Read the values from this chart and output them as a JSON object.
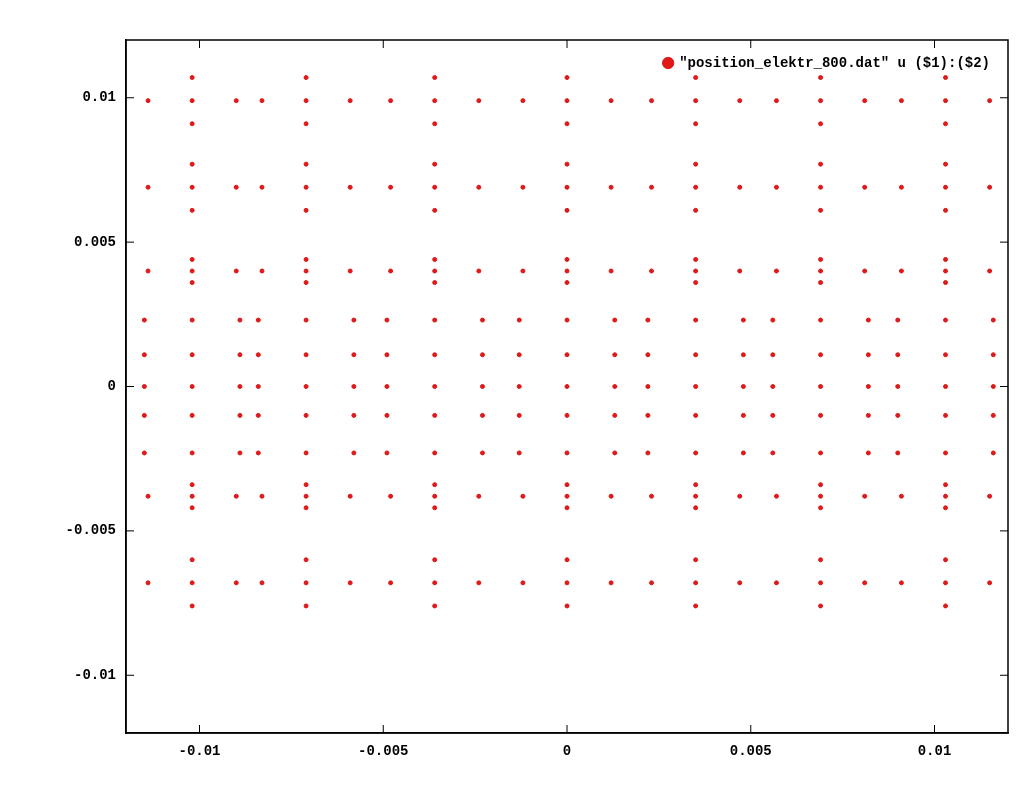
{
  "chart_data": {
    "type": "scatter",
    "xlim": [
      -0.012,
      0.012
    ],
    "xticks": [
      {
        "value": -0.01,
        "label": "-0.01"
      },
      {
        "value": -0.005,
        "label": "-0.005"
      },
      0,
      {
        "value": 0.005,
        "label": "0.005"
      },
      {
        "value": 0.01,
        "label": "0.01"
      }
    ],
    "ylim": [
      -0.012,
      0.012
    ],
    "yticks": [
      {
        "value": -0.01,
        "label": "-0.01"
      },
      {
        "value": -0.005,
        "label": "-0.005"
      },
      0,
      {
        "value": 0.005,
        "label": "0.005"
      },
      {
        "value": 0.01,
        "label": "0.01"
      }
    ],
    "grid": false,
    "legend": "top right",
    "marker": "circle",
    "series": [
      {
        "name": "\"position_elektr_800.dat\" u ($1):($2)",
        "color": "#e01818",
        "x": [
          -0.0102,
          -0.0114,
          -0.009,
          -0.0102,
          -0.0102,
          -0.0071,
          -0.0083,
          -0.0059,
          -0.0071,
          -0.0071,
          -0.0036,
          -0.0048,
          -0.0024,
          -0.0036,
          -0.0036,
          0,
          -0.0012,
          0.0012,
          0,
          0,
          0.0035,
          0.0023,
          0.0047,
          0.0035,
          0.0035,
          0.0069,
          0.0057,
          0.0081,
          0.0069,
          0.0069,
          0.0103,
          0.0091,
          0.0115,
          0.0103,
          0.0103,
          -0.0102,
          -0.0114,
          -0.009,
          -0.0102,
          -0.0102,
          -0.0071,
          -0.0083,
          -0.0059,
          -0.0071,
          -0.0071,
          -0.0036,
          -0.0048,
          -0.0024,
          -0.0036,
          -0.0036,
          0,
          -0.0012,
          0.0012,
          0,
          0,
          0.0035,
          0.0023,
          0.0047,
          0.0035,
          0.0035,
          0.0069,
          0.0057,
          0.0081,
          0.0069,
          0.0069,
          0.0103,
          0.0091,
          0.0115,
          0.0103,
          0.0103,
          -0.0102,
          -0.0114,
          -0.009,
          -0.0102,
          -0.0102,
          -0.0071,
          -0.0083,
          -0.0059,
          -0.0071,
          -0.0071,
          -0.0036,
          -0.0048,
          -0.0024,
          -0.0036,
          -0.0036,
          0,
          -0.0012,
          0.0012,
          0,
          0,
          0.0035,
          0.0023,
          0.0047,
          0.0035,
          0.0035,
          0.0069,
          0.0057,
          0.0081,
          0.0069,
          0.0069,
          0.0103,
          0.0091,
          0.0115,
          0.0103,
          0.0103,
          -0.0102,
          -0.0115,
          -0.0089,
          -0.0071,
          -0.0084,
          -0.0058,
          -0.0036,
          -0.0049,
          -0.0023,
          0,
          -0.0013,
          0.0013,
          0.0035,
          0.0022,
          0.0048,
          0.0069,
          0.0056,
          0.0082,
          0.0103,
          0.009,
          0.0116,
          -0.0102,
          -0.0115,
          -0.0089,
          -0.0071,
          -0.0084,
          -0.0058,
          -0.0036,
          -0.0049,
          -0.0023,
          0,
          -0.0013,
          0.0013,
          0.0035,
          0.0022,
          0.0048,
          0.0069,
          0.0056,
          0.0082,
          0.0103,
          0.009,
          0.0116,
          -0.0102,
          -0.0115,
          -0.0089,
          -0.0071,
          -0.0084,
          -0.0058,
          -0.0036,
          -0.0049,
          -0.0023,
          0,
          -0.0013,
          0.0013,
          0.0035,
          0.0022,
          0.0048,
          0.0069,
          0.0056,
          0.0082,
          0.0103,
          0.009,
          0.0116,
          -0.0102,
          -0.0115,
          -0.0089,
          -0.0071,
          -0.0084,
          -0.0058,
          -0.0036,
          -0.0049,
          -0.0023,
          0,
          -0.0013,
          0.0013,
          0.0035,
          0.0022,
          0.0048,
          0.0069,
          0.0056,
          0.0082,
          0.0103,
          0.009,
          0.0116,
          -0.0102,
          -0.0115,
          -0.0089,
          -0.0071,
          -0.0084,
          -0.0058,
          -0.0036,
          -0.0049,
          -0.0023,
          0,
          -0.0013,
          0.0013,
          0.0035,
          0.0022,
          0.0048,
          0.0069,
          0.0056,
          0.0082,
          0.0103,
          0.009,
          0.0116,
          -0.0102,
          -0.0114,
          -0.009,
          -0.0102,
          -0.0102,
          -0.0071,
          -0.0083,
          -0.0059,
          -0.0071,
          -0.0071,
          -0.0036,
          -0.0048,
          -0.0024,
          -0.0036,
          -0.0036,
          0,
          -0.0012,
          0.0012,
          0,
          0,
          0.0035,
          0.0023,
          0.0047,
          0.0035,
          0.0035,
          0.0069,
          0.0057,
          0.0081,
          0.0069,
          0.0069,
          0.0103,
          0.0091,
          0.0115,
          0.0103,
          0.0103,
          -0.0102,
          -0.0114,
          -0.009,
          -0.0102,
          -0.0102,
          -0.0071,
          -0.0083,
          -0.0059,
          -0.0071,
          -0.0071,
          -0.0036,
          -0.0048,
          -0.0024,
          -0.0036,
          -0.0036,
          0,
          -0.0012,
          0.0012,
          0,
          0,
          0.0035,
          0.0023,
          0.0047,
          0.0035,
          0.0035,
          0.0069,
          0.0057,
          0.0081,
          0.0069,
          0.0069,
          0.0103,
          0.0091,
          0.0115,
          0.0103,
          0.0103
        ],
        "values": [
          0.0099,
          0.0099,
          0.0099,
          0.0107,
          0.0091,
          0.0099,
          0.0099,
          0.0099,
          0.0107,
          0.0091,
          0.0099,
          0.0099,
          0.0099,
          0.0107,
          0.0091,
          0.0099,
          0.0099,
          0.0099,
          0.0107,
          0.0091,
          0.0099,
          0.0099,
          0.0099,
          0.0107,
          0.0091,
          0.0099,
          0.0099,
          0.0099,
          0.0107,
          0.0091,
          0.0099,
          0.0099,
          0.0099,
          0.0107,
          0.0091,
          0.0069,
          0.0069,
          0.0069,
          0.0077,
          0.0061,
          0.0069,
          0.0069,
          0.0069,
          0.0077,
          0.0061,
          0.0069,
          0.0069,
          0.0069,
          0.0077,
          0.0061,
          0.0069,
          0.0069,
          0.0069,
          0.0077,
          0.0061,
          0.0069,
          0.0069,
          0.0069,
          0.0077,
          0.0061,
          0.0069,
          0.0069,
          0.0069,
          0.0077,
          0.0061,
          0.0069,
          0.0069,
          0.0069,
          0.0077,
          0.0061,
          0.004,
          0.004,
          0.004,
          0.0044,
          0.0036,
          0.004,
          0.004,
          0.004,
          0.0044,
          0.0036,
          0.004,
          0.004,
          0.004,
          0.0044,
          0.0036,
          0.004,
          0.004,
          0.004,
          0.0044,
          0.0036,
          0.004,
          0.004,
          0.004,
          0.0044,
          0.0036,
          0.004,
          0.004,
          0.004,
          0.0044,
          0.0036,
          0.004,
          0.004,
          0.004,
          0.0044,
          0.0036,
          0.0023,
          0.0023,
          0.0023,
          0.0023,
          0.0023,
          0.0023,
          0.0023,
          0.0023,
          0.0023,
          0.0023,
          0.0023,
          0.0023,
          0.0023,
          0.0023,
          0.0023,
          0.0023,
          0.0023,
          0.0023,
          0.0023,
          0.0023,
          0.0023,
          0.0011,
          0.0011,
          0.0011,
          0.0011,
          0.0011,
          0.0011,
          0.0011,
          0.0011,
          0.0011,
          0.0011,
          0.0011,
          0.0011,
          0.0011,
          0.0011,
          0.0011,
          0.0011,
          0.0011,
          0.0011,
          0.0011,
          0.0011,
          0.0011,
          0,
          0,
          0,
          0,
          0,
          0,
          0,
          0,
          0,
          0,
          0,
          0,
          0,
          0,
          0,
          0,
          0,
          0,
          0,
          0,
          0,
          -0.001,
          -0.001,
          -0.001,
          -0.001,
          -0.001,
          -0.001,
          -0.001,
          -0.001,
          -0.001,
          -0.001,
          -0.001,
          -0.001,
          -0.001,
          -0.001,
          -0.001,
          -0.001,
          -0.001,
          -0.001,
          -0.001,
          -0.001,
          -0.001,
          -0.0023,
          -0.0023,
          -0.0023,
          -0.0023,
          -0.0023,
          -0.0023,
          -0.0023,
          -0.0023,
          -0.0023,
          -0.0023,
          -0.0023,
          -0.0023,
          -0.0023,
          -0.0023,
          -0.0023,
          -0.0023,
          -0.0023,
          -0.0023,
          -0.0023,
          -0.0023,
          -0.0023,
          -0.0038,
          -0.0038,
          -0.0038,
          -0.0034,
          -0.0042,
          -0.0038,
          -0.0038,
          -0.0038,
          -0.0034,
          -0.0042,
          -0.0038,
          -0.0038,
          -0.0038,
          -0.0034,
          -0.0042,
          -0.0038,
          -0.0038,
          -0.0038,
          -0.0034,
          -0.0042,
          -0.0038,
          -0.0038,
          -0.0038,
          -0.0034,
          -0.0042,
          -0.0038,
          -0.0038,
          -0.0038,
          -0.0034,
          -0.0042,
          -0.0038,
          -0.0038,
          -0.0038,
          -0.0034,
          -0.0042,
          -0.0068,
          -0.0068,
          -0.0068,
          -0.006,
          -0.0076,
          -0.0068,
          -0.0068,
          -0.0068,
          -0.006,
          -0.0076,
          -0.0068,
          -0.0068,
          -0.0068,
          -0.006,
          -0.0076,
          -0.0068,
          -0.0068,
          -0.0068,
          -0.006,
          -0.0076,
          -0.0068,
          -0.0068,
          -0.0068,
          -0.006,
          -0.0076,
          -0.0068,
          -0.0068,
          -0.0068,
          -0.006,
          -0.0076,
          -0.0068,
          -0.0068,
          -0.0068,
          -0.006,
          -0.0076
        ]
      }
    ]
  }
}
